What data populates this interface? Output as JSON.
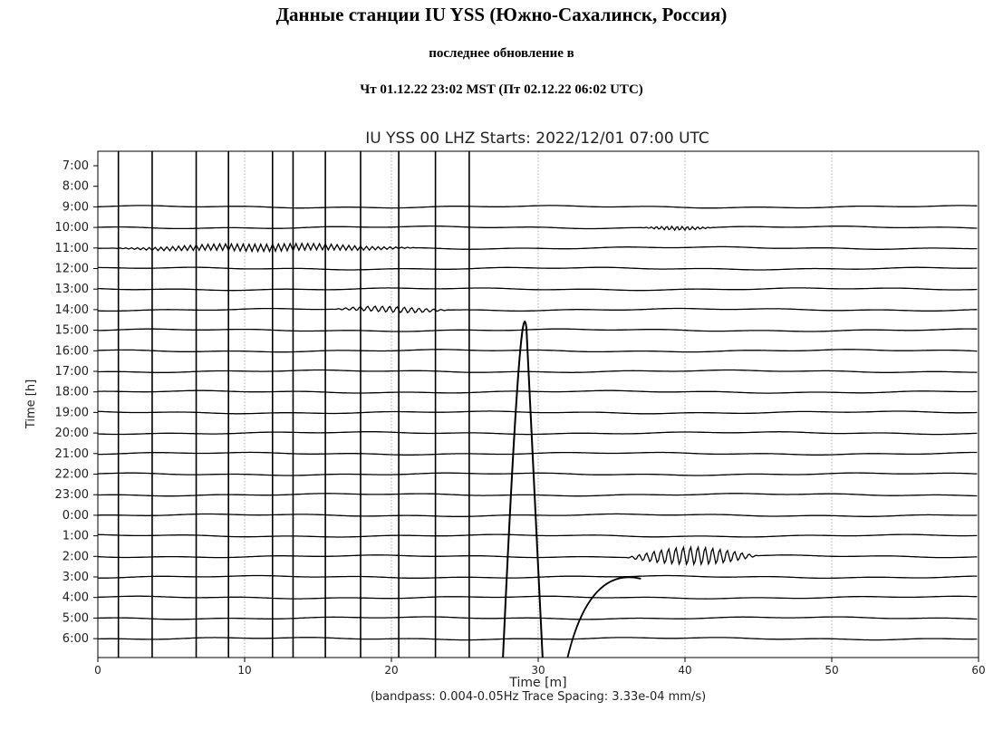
{
  "page": {
    "title": "Данные станции IU YSS (Южно-Сахалинск, Россия)",
    "subtitle": "последнее обновление в",
    "timestamp": "Чт 01.12.22 23:02 MST (Пт 02.12.22 06:02 UTC)"
  },
  "chart_data": {
    "type": "line",
    "title": "IU YSS 00 LHZ  Starts: 2022/12/01 07:00 UTC",
    "xlabel": "Time [m]",
    "ylabel": "Time [h]",
    "footnote": "(bandpass: 0.004-0.05Hz  Trace Spacing: 3.33e-04 mm/s)",
    "xlim": [
      0,
      60
    ],
    "x_ticks": [
      "0",
      "10",
      "20",
      "30",
      "40",
      "50",
      "60"
    ],
    "y_ticks": [
      "7:00",
      "8:00",
      "9:00",
      "10:00",
      "11:00",
      "12:00",
      "13:00",
      "14:00",
      "15:00",
      "16:00",
      "17:00",
      "18:00",
      "19:00",
      "20:00",
      "21:00",
      "22:00",
      "23:00",
      "0:00",
      "1:00",
      "2:00",
      "3:00",
      "4:00",
      "5:00",
      "6:00"
    ],
    "grid": "vertical-dotted",
    "colors": {
      "trace": "#000000",
      "grid": "#9a9a9a",
      "axis": "#000000"
    },
    "events": [
      {
        "hour": "10:00",
        "start_min": 37,
        "end_min": 42,
        "amp": 0.12,
        "period": 0.35
      },
      {
        "hour": "11:00",
        "start_min": 1,
        "end_min": 22,
        "amp": 0.22,
        "period": 0.4
      },
      {
        "hour": "14:00",
        "start_min": 16,
        "end_min": 24,
        "amp": 0.18,
        "period": 0.5
      },
      {
        "hour": "2:00",
        "start_min": 36,
        "end_min": 45,
        "amp": 0.55,
        "period": 0.5
      }
    ]
  }
}
